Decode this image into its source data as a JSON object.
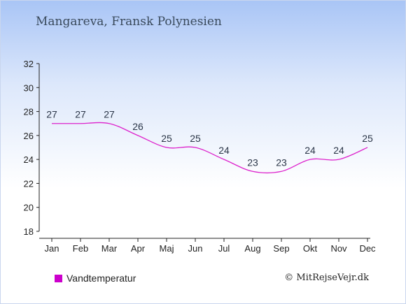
{
  "title": "Mangareva, Fransk Polynesien",
  "legend": {
    "label": "Vandtemperatur"
  },
  "credit": "© MitRejseVejr.dk",
  "colors": {
    "line": "#dd22cc",
    "swatch": "#cc00cc",
    "axis": "#222222"
  },
  "chart_data": {
    "type": "line",
    "categories": [
      "Jan",
      "Feb",
      "Mar",
      "Apr",
      "Maj",
      "Jun",
      "Jul",
      "Aug",
      "Sep",
      "Okt",
      "Nov",
      "Dec"
    ],
    "series": [
      {
        "name": "Vandtemperatur",
        "values": [
          27,
          27,
          27,
          26,
          25,
          25,
          24,
          23,
          23,
          24,
          24,
          25
        ]
      }
    ],
    "ylim": [
      18,
      32
    ],
    "yticks": [
      18,
      20,
      22,
      24,
      26,
      28,
      30,
      32
    ],
    "grid": false,
    "legend_position": "bottom-left",
    "data_labels": true
  }
}
